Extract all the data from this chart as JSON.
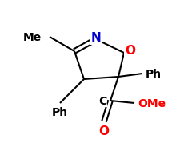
{
  "background": "#ffffff",
  "bond_color": "#000000",
  "atom_colors": {
    "N": "#0000cd",
    "O": "#ff0000",
    "C": "#000000",
    "Me": "#000000",
    "Ph": "#000000",
    "OMe": "#ff0000"
  },
  "figsize": [
    2.15,
    2.05
  ],
  "dpi": 100,
  "lw": 1.5,
  "fs": 10
}
